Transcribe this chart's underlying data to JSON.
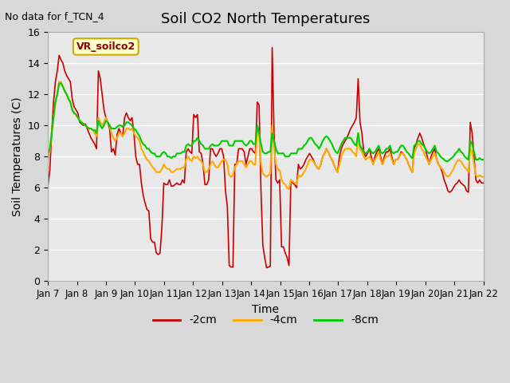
{
  "title": "Soil CO2 North Temperatures",
  "subtitle": "No data for f_TCN_4",
  "ylabel": "Soil Temperatures (C)",
  "xlabel": "Time",
  "xlim_days": [
    0,
    15
  ],
  "ylim": [
    0,
    16
  ],
  "yticks": [
    0,
    2,
    4,
    6,
    8,
    10,
    12,
    14,
    16
  ],
  "xtick_labels": [
    "Jan 7",
    "Jan 8",
    "Jan 9",
    "Jan 10",
    "Jan 11",
    "Jan 12",
    "Jan 13",
    "Jan 14",
    "Jan 15",
    "Jan 16",
    "Jan 17",
    "Jan 18",
    "Jan 19",
    "Jan 20",
    "Jan 21",
    "Jan 22"
  ],
  "legend_label": "VR_soilco2",
  "legend_bg": "#ffffcc",
  "legend_border": "#ccaa00",
  "bg_color": "#e8e8e8",
  "plot_bg": "#ebebeb",
  "line_colors": {
    "-2cm": "#cc0000",
    "-4cm": "#ffaa00",
    "-8cm": "#00cc00"
  },
  "series_2cm": [
    6.1,
    7.1,
    9.5,
    11.5,
    12.8,
    13.5,
    14.5,
    14.2,
    14.0,
    13.5,
    13.2,
    13.0,
    12.8,
    11.7,
    11.2,
    11.0,
    10.8,
    10.2,
    10.1,
    10.0,
    10.1,
    9.8,
    9.5,
    9.2,
    9.0,
    8.8,
    8.5,
    13.5,
    13.0,
    12.0,
    11.0,
    10.5,
    10.2,
    9.8,
    8.3,
    8.5,
    8.1,
    9.4,
    9.8,
    9.5,
    9.3,
    10.5,
    10.8,
    10.5,
    10.3,
    10.5,
    9.5,
    8.0,
    7.5,
    7.5,
    6.3,
    5.5,
    5.0,
    4.6,
    4.5,
    2.7,
    2.5,
    2.5,
    1.8,
    1.7,
    1.8,
    3.5,
    6.3,
    6.2,
    6.2,
    6.5,
    6.1,
    6.1,
    6.2,
    6.3,
    6.2,
    6.2,
    6.5,
    6.3,
    8.3,
    8.5,
    8.3,
    8.2,
    10.7,
    10.5,
    10.7,
    8.3,
    8.2,
    7.5,
    6.2,
    6.2,
    6.5,
    8.5,
    8.5,
    8.2,
    8.0,
    8.2,
    8.5,
    8.5,
    8.0,
    5.8,
    4.8,
    1.0,
    0.9,
    0.9,
    7.5,
    7.5,
    8.5,
    8.5,
    8.5,
    8.3,
    7.5,
    8.0,
    8.5,
    8.5,
    8.3,
    8.2,
    11.5,
    11.3,
    5.8,
    2.3,
    1.5,
    0.85,
    0.9,
    0.95,
    15.0,
    9.5,
    6.5,
    6.3,
    6.5,
    2.2,
    2.2,
    1.8,
    1.5,
    1.0,
    6.5,
    6.3,
    6.2,
    6.0,
    7.5,
    7.2,
    7.3,
    7.5,
    7.8,
    8.0,
    8.2,
    8.0,
    7.8,
    7.5,
    7.3,
    7.2,
    7.5,
    8.0,
    8.2,
    8.5,
    8.3,
    8.0,
    7.8,
    7.5,
    7.2,
    7.0,
    8.0,
    8.5,
    8.8,
    9.0,
    9.2,
    9.5,
    9.8,
    10.0,
    10.2,
    10.5,
    13.0,
    10.2,
    9.5,
    8.3,
    8.0,
    8.2,
    8.5,
    8.0,
    7.5,
    8.0,
    8.3,
    8.5,
    8.0,
    7.5,
    8.0,
    8.3,
    8.3,
    8.5,
    8.0,
    7.5,
    7.8,
    7.8,
    8.0,
    8.3,
    8.2,
    8.0,
    7.8,
    7.5,
    7.2,
    7.0,
    8.5,
    8.8,
    9.2,
    9.5,
    9.2,
    8.8,
    8.5,
    8.0,
    7.5,
    8.0,
    8.3,
    8.5,
    7.8,
    7.5,
    7.3,
    7.0,
    6.5,
    6.2,
    5.8,
    5.7,
    5.8,
    6.0,
    6.2,
    6.3,
    6.5,
    6.3,
    6.2,
    6.1,
    5.8,
    5.7,
    10.2,
    9.5,
    8.0,
    6.5,
    6.3,
    6.5,
    6.3,
    6.3
  ],
  "series_4cm": [
    7.8,
    8.3,
    9.5,
    10.5,
    11.5,
    12.0,
    12.8,
    12.8,
    12.5,
    12.2,
    12.0,
    11.7,
    11.5,
    11.0,
    10.8,
    10.7,
    10.5,
    10.3,
    10.2,
    10.1,
    10.0,
    9.9,
    9.8,
    9.8,
    9.7,
    9.5,
    9.3,
    10.5,
    10.2,
    10.0,
    10.2,
    10.5,
    10.2,
    10.0,
    9.5,
    9.2,
    9.0,
    9.2,
    9.5,
    9.5,
    9.3,
    9.5,
    9.8,
    9.8,
    9.7,
    9.8,
    9.5,
    9.3,
    9.2,
    9.0,
    8.5,
    8.3,
    8.0,
    7.8,
    7.7,
    7.5,
    7.3,
    7.2,
    7.0,
    7.0,
    7.0,
    7.2,
    7.5,
    7.3,
    7.2,
    7.2,
    7.0,
    7.0,
    7.1,
    7.2,
    7.2,
    7.2,
    7.3,
    7.3,
    7.8,
    8.0,
    7.8,
    7.7,
    8.0,
    7.9,
    8.0,
    7.8,
    7.7,
    7.5,
    7.0,
    7.0,
    7.2,
    7.5,
    7.7,
    7.5,
    7.3,
    7.3,
    7.5,
    7.7,
    7.8,
    7.8,
    7.5,
    6.8,
    6.7,
    6.8,
    7.3,
    7.5,
    7.7,
    7.7,
    7.7,
    7.5,
    7.3,
    7.5,
    7.7,
    7.7,
    7.5,
    7.5,
    9.8,
    9.5,
    7.5,
    6.9,
    6.8,
    6.7,
    6.8,
    6.9,
    10.0,
    8.5,
    7.5,
    7.2,
    7.1,
    6.5,
    6.3,
    6.2,
    6.0,
    5.9,
    6.5,
    6.4,
    6.3,
    6.2,
    6.8,
    6.7,
    6.8,
    7.0,
    7.2,
    7.5,
    7.8,
    7.8,
    7.7,
    7.5,
    7.3,
    7.2,
    7.5,
    8.0,
    8.2,
    8.5,
    8.3,
    8.0,
    7.8,
    7.5,
    7.2,
    7.0,
    7.5,
    8.0,
    8.3,
    8.5,
    8.5,
    8.5,
    8.5,
    8.3,
    8.2,
    8.0,
    9.5,
    8.5,
    8.3,
    8.0,
    7.8,
    7.9,
    8.0,
    7.8,
    7.5,
    7.8,
    8.0,
    8.3,
    7.8,
    7.5,
    7.8,
    8.0,
    8.0,
    8.2,
    7.8,
    7.5,
    7.8,
    7.8,
    8.0,
    8.2,
    8.2,
    8.0,
    7.8,
    7.5,
    7.2,
    7.0,
    8.2,
    8.5,
    8.8,
    8.8,
    8.5,
    8.3,
    8.0,
    7.8,
    7.5,
    7.8,
    8.0,
    8.2,
    7.8,
    7.5,
    7.3,
    7.2,
    7.0,
    6.8,
    6.7,
    6.8,
    7.0,
    7.2,
    7.5,
    7.7,
    7.8,
    7.7,
    7.5,
    7.3,
    7.2,
    7.0,
    8.5,
    8.3,
    7.5,
    6.8,
    6.7,
    6.8,
    6.7,
    6.7
  ],
  "series_8cm": [
    8.2,
    8.5,
    9.5,
    10.5,
    11.5,
    12.0,
    12.7,
    12.7,
    12.5,
    12.2,
    12.0,
    11.7,
    11.5,
    11.0,
    10.8,
    10.7,
    10.5,
    10.3,
    10.2,
    10.1,
    10.0,
    9.9,
    9.8,
    9.8,
    9.7,
    9.7,
    9.5,
    10.3,
    10.0,
    9.8,
    10.0,
    10.3,
    10.2,
    10.0,
    9.8,
    9.8,
    9.8,
    9.9,
    10.0,
    10.0,
    9.9,
    10.0,
    10.2,
    10.2,
    10.1,
    10.0,
    9.8,
    9.7,
    9.5,
    9.3,
    9.0,
    8.8,
    8.7,
    8.5,
    8.5,
    8.3,
    8.2,
    8.2,
    8.0,
    8.0,
    8.0,
    8.2,
    8.3,
    8.2,
    8.0,
    8.0,
    7.9,
    8.0,
    8.0,
    8.2,
    8.2,
    8.2,
    8.3,
    8.3,
    8.7,
    8.8,
    8.7,
    8.7,
    9.0,
    9.0,
    9.2,
    9.0,
    8.8,
    8.7,
    8.5,
    8.5,
    8.5,
    8.7,
    8.8,
    8.7,
    8.7,
    8.7,
    8.8,
    9.0,
    9.0,
    9.0,
    9.0,
    8.7,
    8.7,
    8.7,
    9.0,
    9.0,
    9.0,
    9.0,
    9.0,
    8.8,
    8.7,
    8.8,
    9.0,
    9.0,
    8.8,
    8.8,
    10.0,
    9.5,
    8.8,
    8.3,
    8.2,
    8.2,
    8.3,
    8.3,
    9.5,
    9.0,
    8.5,
    8.2,
    8.2,
    8.2,
    8.2,
    8.0,
    8.0,
    8.0,
    8.2,
    8.2,
    8.2,
    8.2,
    8.5,
    8.5,
    8.5,
    8.7,
    8.8,
    9.0,
    9.2,
    9.2,
    9.0,
    8.8,
    8.7,
    8.5,
    8.7,
    9.0,
    9.2,
    9.3,
    9.2,
    9.0,
    8.8,
    8.5,
    8.3,
    8.2,
    8.5,
    8.8,
    9.0,
    9.2,
    9.2,
    9.2,
    9.2,
    9.0,
    8.8,
    8.7,
    9.5,
    8.7,
    8.5,
    8.3,
    8.2,
    8.3,
    8.5,
    8.3,
    8.2,
    8.3,
    8.5,
    8.7,
    8.3,
    8.2,
    8.3,
    8.5,
    8.5,
    8.7,
    8.3,
    8.2,
    8.3,
    8.3,
    8.5,
    8.7,
    8.7,
    8.5,
    8.3,
    8.2,
    8.0,
    7.9,
    8.7,
    8.8,
    9.0,
    9.0,
    8.8,
    8.7,
    8.5,
    8.3,
    8.2,
    8.3,
    8.5,
    8.7,
    8.3,
    8.2,
    8.0,
    7.9,
    7.8,
    7.7,
    7.7,
    7.8,
    7.9,
    8.0,
    8.2,
    8.3,
    8.5,
    8.3,
    8.2,
    8.0,
    7.9,
    7.8,
    9.0,
    8.8,
    8.3,
    7.8,
    7.8,
    7.9,
    7.8,
    7.8
  ]
}
